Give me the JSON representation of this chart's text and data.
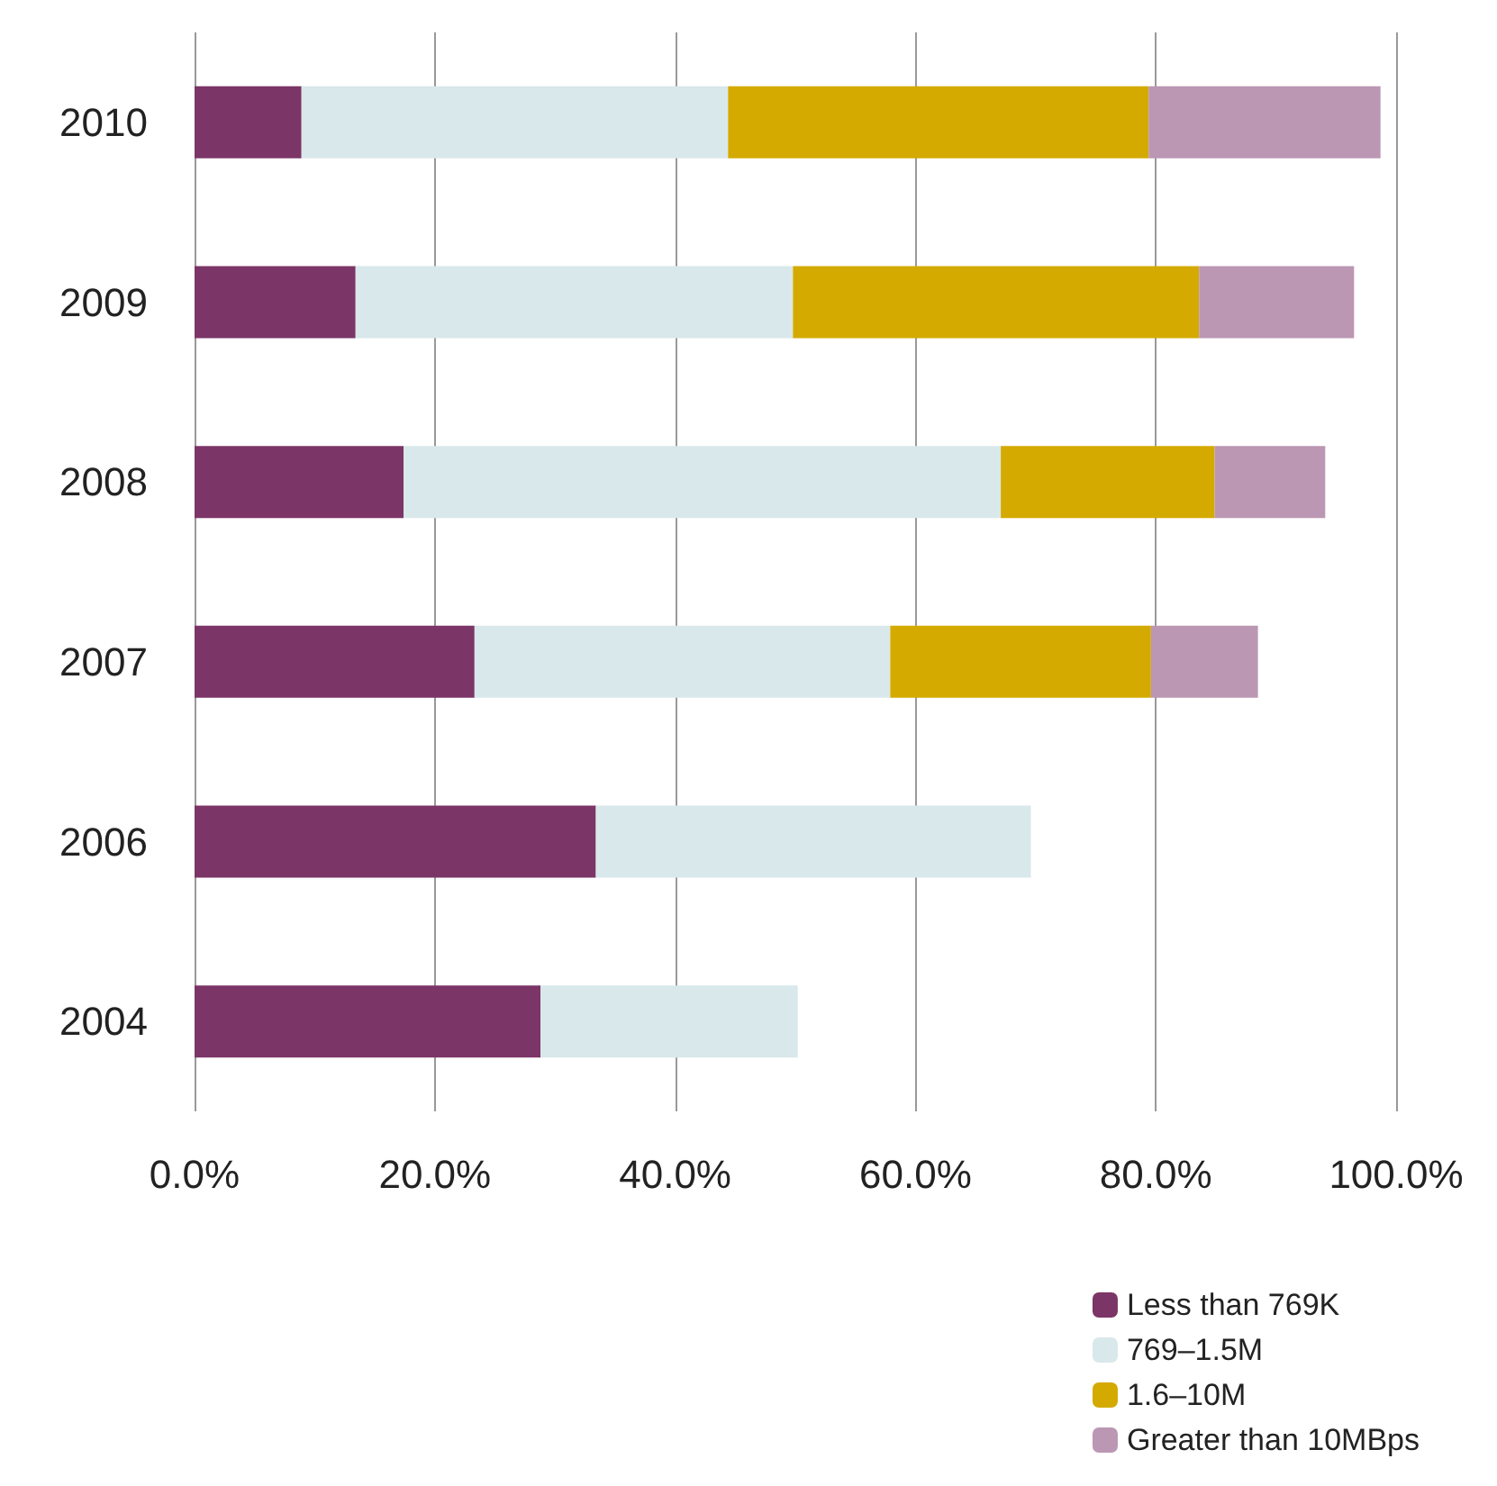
{
  "chart_data": {
    "type": "bar",
    "orientation": "horizontal",
    "stacked": true,
    "categories": [
      "2010",
      "2009",
      "2008",
      "2007",
      "2006",
      "2004"
    ],
    "series": [
      {
        "name": "Less than 769K",
        "color": "#7b3566",
        "values": [
          8.9,
          13.4,
          17.4,
          23.3,
          33.4,
          28.8
        ]
      },
      {
        "name": "769–1.5M",
        "color": "#d9e8ea",
        "values": [
          35.5,
          36.4,
          49.7,
          34.6,
          36.2,
          21.4
        ]
      },
      {
        "name": "1.6–10M",
        "color": "#d4aa00",
        "values": [
          35.0,
          33.8,
          17.8,
          21.7,
          null,
          null
        ]
      },
      {
        "name": "Greater than 10MBps",
        "color": "#bb97b3",
        "values": [
          19.3,
          12.9,
          9.2,
          8.9,
          null,
          null
        ]
      }
    ],
    "xlim": [
      0,
      100
    ],
    "xticks": [
      {
        "value": 0,
        "label": "0.0%"
      },
      {
        "value": 20,
        "label": "20.0%"
      },
      {
        "value": 40,
        "label": "40.0%"
      },
      {
        "value": 60,
        "label": "60.0%"
      },
      {
        "value": 80,
        "label": "80.0%"
      },
      {
        "value": 100,
        "label": "100.0%"
      }
    ],
    "grid": "x",
    "legend": "bottom right"
  }
}
